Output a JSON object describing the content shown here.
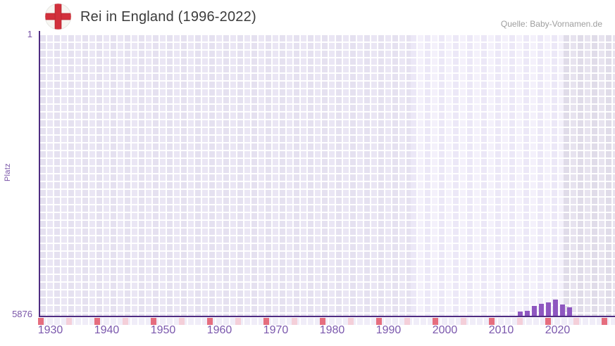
{
  "header": {
    "title": "Rei in England (1996-2022)",
    "source": "Quelle: Baby-Vornamen.de",
    "flag_icon": "england-flag-icon"
  },
  "chart_data": {
    "type": "bar",
    "title": "Rei in England (1996-2022)",
    "source": "Quelle: Baby-Vornamen.de",
    "xlabel": "",
    "ylabel": "Platz",
    "ylim": [
      1,
      5876
    ],
    "y_axis_inverted": true,
    "y_tick_labels": [
      "1",
      "5876"
    ],
    "x_tick_labels": [
      "1930",
      "1940",
      "1950",
      "1960",
      "1970",
      "1980",
      "1990",
      "2000",
      "2010",
      "2020"
    ],
    "x_major_ticks": [
      1930,
      1940,
      1950,
      1960,
      1970,
      1980,
      1990,
      2000,
      2010,
      2020,
      2030
    ],
    "x_minor_ticks": [
      1935,
      1945,
      1955,
      1965,
      1975,
      1985,
      1995,
      2005,
      2015,
      2025
    ],
    "x_axis_range": [
      1923,
      2032
    ],
    "highlight_band_years": [
      1996,
      2022
    ],
    "grid": true,
    "legend": false,
    "series": [
      {
        "name": "Platz",
        "years": [
          2015,
          2016,
          2017,
          2018,
          2019,
          2020,
          2021,
          2022
        ],
        "values": [
          5790,
          5775,
          5665,
          5630,
          5590,
          5540,
          5640,
          5695
        ]
      }
    ],
    "colors": {
      "bar": "#8e57c0",
      "axis": "#4f2c82",
      "major_tick": "#e56d7e",
      "minor_tick": "#f4cfd9",
      "x_label": "#7b58ad",
      "y_label": "#7a55a8",
      "title": "#3b3b3b",
      "source": "#9e9e9e",
      "flag_cross": "#d2303c"
    }
  }
}
